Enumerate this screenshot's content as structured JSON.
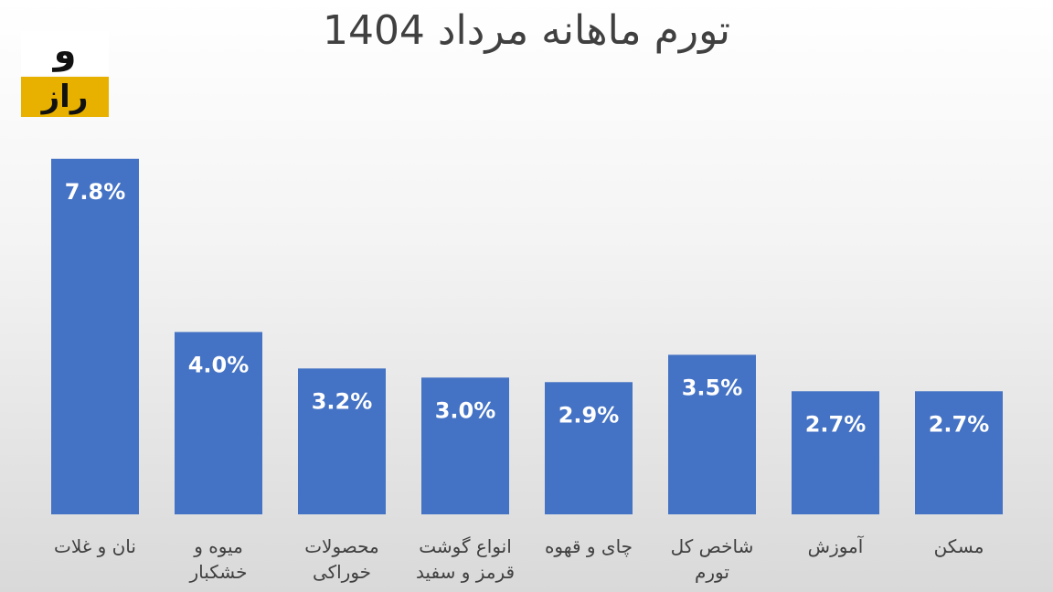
{
  "chart_data": {
    "type": "bar",
    "title": "تورم ماهانه مرداد 1404",
    "logo": {
      "top": "و",
      "bottom": "راز"
    },
    "categories": [
      "نان و غلات",
      "میوه و\nخشکبار",
      "محصولات\nخوراکی",
      "انواع گوشت\nقرمز و سفید",
      "چای و قهوه",
      "شاخص کل\nتورم",
      "آموزش",
      "مسکن"
    ],
    "values": [
      7.8,
      4.0,
      3.2,
      3.0,
      2.9,
      3.5,
      2.7,
      2.7
    ],
    "value_labels": [
      "7.8%",
      "4.0%",
      "3.2%",
      "3.0%",
      "2.9%",
      "3.5%",
      "2.7%",
      "2.7%"
    ],
    "color": "#4472c4"
  }
}
